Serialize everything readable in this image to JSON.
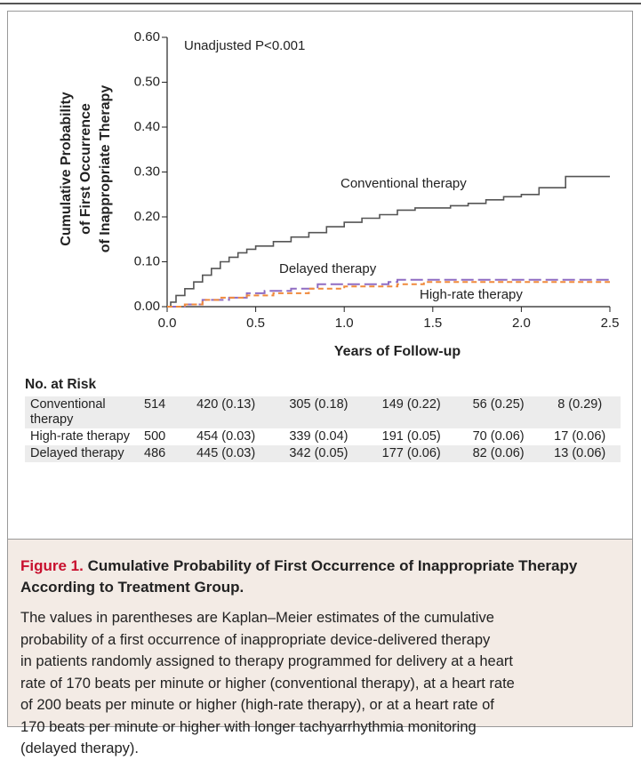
{
  "chart_data": {
    "type": "step-line",
    "annotation": "Unadjusted P<0.001",
    "xlabel": "Years of Follow-up",
    "ylabel": [
      "Cumulative Probability",
      "of First Occurrence",
      "of Inappropriate Therapy"
    ],
    "xlim": [
      0,
      2.5
    ],
    "xticks": [
      {
        "value": 0,
        "label": "0.0"
      },
      0.5,
      {
        "value": 1,
        "label": "1.0"
      },
      1.5,
      {
        "value": 2,
        "label": "2.0"
      },
      2.5
    ],
    "ylim": [
      0,
      0.6
    ],
    "yticks": [
      {
        "value": 0,
        "label": "0.00"
      },
      {
        "value": 0.1,
        "label": "0.10"
      },
      {
        "value": 0.2,
        "label": "0.20"
      },
      {
        "value": 0.3,
        "label": "0.30"
      },
      {
        "value": 0.4,
        "label": "0.40"
      },
      {
        "value": 0.5,
        "label": "0.50"
      },
      {
        "value": 0.6,
        "label": "0.60"
      }
    ],
    "series": [
      {
        "name": "Conventional therapy",
        "color": "#555555",
        "line_style": "solid",
        "x": [
          0,
          0.02,
          0.02,
          0.05,
          0.05,
          0.1,
          0.1,
          0.15,
          0.15,
          0.2,
          0.2,
          0.25,
          0.25,
          0.3,
          0.3,
          0.35,
          0.35,
          0.4,
          0.4,
          0.45,
          0.45,
          0.5,
          0.5,
          0.6,
          0.6,
          0.7,
          0.7,
          0.8,
          0.8,
          0.9,
          0.9,
          1.0,
          1.0,
          1.1,
          1.1,
          1.2,
          1.2,
          1.3,
          1.3,
          1.4,
          1.4,
          1.6,
          1.6,
          1.7,
          1.7,
          1.8,
          1.8,
          1.9,
          1.9,
          2.0,
          2.0,
          2.1,
          2.1,
          2.25,
          2.25,
          2.5
        ],
        "values": [
          0,
          0,
          0.01,
          0.01,
          0.025,
          0.025,
          0.04,
          0.04,
          0.055,
          0.055,
          0.07,
          0.07,
          0.085,
          0.085,
          0.1,
          0.1,
          0.11,
          0.11,
          0.12,
          0.12,
          0.128,
          0.128,
          0.135,
          0.135,
          0.145,
          0.145,
          0.155,
          0.155,
          0.165,
          0.165,
          0.178,
          0.178,
          0.188,
          0.188,
          0.197,
          0.197,
          0.205,
          0.205,
          0.215,
          0.215,
          0.22,
          0.22,
          0.225,
          0.225,
          0.23,
          0.23,
          0.238,
          0.238,
          0.245,
          0.245,
          0.25,
          0.25,
          0.265,
          0.265,
          0.29,
          0.29
        ]
      },
      {
        "name": "Delayed therapy",
        "color": "#8f6cc2",
        "line_style": "long-dash",
        "x": [
          0,
          0.1,
          0.1,
          0.2,
          0.2,
          0.35,
          0.35,
          0.45,
          0.45,
          0.55,
          0.55,
          0.7,
          0.7,
          0.85,
          0.85,
          1.25,
          1.25,
          1.3,
          1.3,
          2.5
        ],
        "values": [
          0,
          0,
          0.005,
          0.005,
          0.015,
          0.015,
          0.02,
          0.02,
          0.03,
          0.03,
          0.035,
          0.035,
          0.04,
          0.04,
          0.05,
          0.05,
          0.055,
          0.055,
          0.06,
          0.06
        ]
      },
      {
        "name": "High-rate therapy",
        "color": "#f08a3c",
        "line_style": "short-dash",
        "x": [
          0,
          0.1,
          0.1,
          0.2,
          0.2,
          0.3,
          0.3,
          0.45,
          0.45,
          0.6,
          0.6,
          0.8,
          0.8,
          1.0,
          1.0,
          1.3,
          1.3,
          1.45,
          1.45,
          2.5
        ],
        "values": [
          0,
          0,
          0.005,
          0.005,
          0.015,
          0.015,
          0.02,
          0.02,
          0.025,
          0.025,
          0.03,
          0.03,
          0.04,
          0.04,
          0.045,
          0.045,
          0.05,
          0.05,
          0.055,
          0.055
        ]
      }
    ]
  },
  "risk_table": {
    "title": "No. at Risk",
    "rows": [
      [
        "Conventional therapy",
        "514",
        "420 (0.13)",
        "305 (0.18)",
        "149 (0.22)",
        "56 (0.25)",
        "8 (0.29)"
      ],
      [
        "High-rate therapy",
        "500",
        "454 (0.03)",
        "339 (0.04)",
        "191 (0.05)",
        "70 (0.06)",
        "17 (0.06)"
      ],
      [
        "Delayed therapy",
        "486",
        "445 (0.03)",
        "342 (0.05)",
        "177 (0.06)",
        "82 (0.06)",
        "13 (0.06)"
      ]
    ]
  },
  "caption": {
    "label": "Figure 1.",
    "title_lines": [
      "Cumulative Probability of First Occurrence of Inappropriate Therapy",
      "According to Treatment Group."
    ],
    "body_lines": [
      "The values in parentheses are Kaplan–Meier estimates of the cumulative",
      "probability of a first occurrence of inappropriate device-delivered therapy",
      "in patients randomly assigned to therapy programmed for delivery at a heart",
      "rate of 170 beats per minute or higher (conventional therapy), at a heart rate",
      "of 200 beats per minute or higher (high-rate therapy), or at a heart rate of",
      "170 beats per minute or higher with longer tachyarrhythmia monitoring",
      "(delayed therapy)."
    ]
  }
}
